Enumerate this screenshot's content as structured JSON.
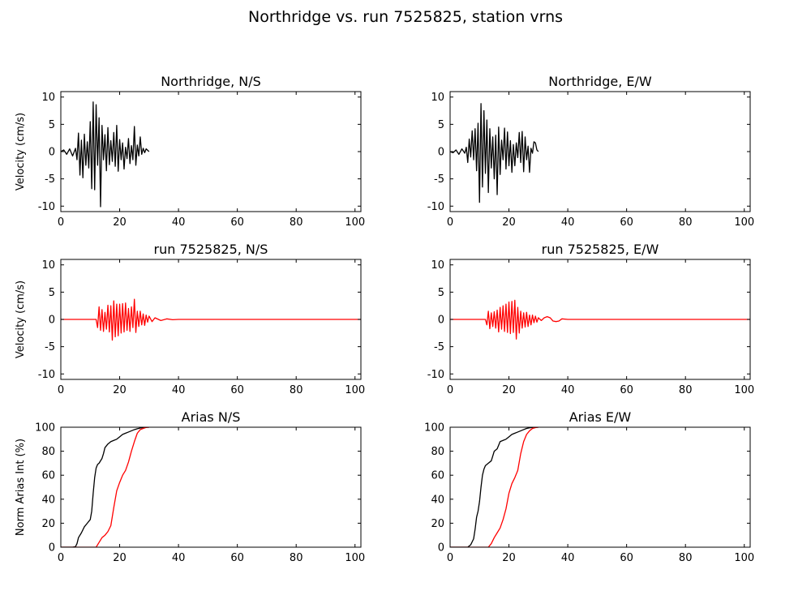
{
  "figure": {
    "suptitle": "Northridge vs. run 7525825, station vrns",
    "colors": {
      "recorded": "#000000",
      "simulated": "#ff0000",
      "axes": "#000000"
    }
  },
  "chart_data": [
    {
      "type": "line",
      "title": "Northridge, N/S",
      "xlabel": "",
      "ylabel": "Velocity (cm/s)",
      "xlim": [
        0,
        102
      ],
      "ylim": [
        -11,
        11
      ],
      "xticks": [
        0,
        20,
        40,
        60,
        80,
        100
      ],
      "yticks": [
        -10,
        -5,
        0,
        5,
        10
      ],
      "series": [
        {
          "color": "#000000",
          "x": [
            0,
            1,
            2,
            3,
            4,
            5,
            5.5,
            6,
            6.5,
            7,
            7.5,
            8,
            8.5,
            9,
            9.5,
            10,
            10.5,
            11,
            11.5,
            12,
            12.5,
            13,
            13.5,
            14,
            14.5,
            15,
            15.5,
            16,
            16.5,
            17,
            17.5,
            18,
            18.5,
            19,
            19.5,
            20,
            20.5,
            21,
            21.5,
            22,
            22.5,
            23,
            23.5,
            24,
            24.5,
            25,
            25.5,
            26,
            26.5,
            27,
            27.5,
            28,
            28.5,
            29,
            30
          ],
          "y": [
            0,
            0.3,
            -0.5,
            0.5,
            -0.8,
            0.6,
            -1.5,
            3.4,
            -4.3,
            2.1,
            -4.8,
            3.2,
            -2.5,
            1.8,
            -3.0,
            5.5,
            -6.8,
            9.1,
            -7.0,
            8.6,
            -2.5,
            6.2,
            -10.1,
            4.8,
            -1.5,
            3.1,
            -3.5,
            4.4,
            -2.4,
            2.0,
            -1.8,
            3.5,
            -2.7,
            4.8,
            -3.6,
            2.2,
            -1.5,
            1.6,
            -3.2,
            0.8,
            -1.3,
            2.4,
            -2.2,
            1.1,
            -1.5,
            4.6,
            -2.5,
            1.2,
            -0.8,
            2.7,
            -0.5,
            0.6,
            -0.2,
            0.5,
            0
          ]
        }
      ]
    },
    {
      "type": "line",
      "title": "Northridge, E/W",
      "xlabel": "",
      "ylabel": "",
      "xlim": [
        0,
        102
      ],
      "ylim": [
        -11,
        11
      ],
      "xticks": [
        0,
        20,
        40,
        60,
        80,
        100
      ],
      "yticks": [
        -10,
        -5,
        0,
        5,
        10
      ],
      "series": [
        {
          "color": "#000000",
          "x": [
            0,
            1,
            2,
            3,
            4,
            5,
            5.5,
            6,
            6.5,
            7,
            7.5,
            8,
            8.5,
            9,
            9.5,
            10,
            10.5,
            11,
            11.5,
            12,
            12.5,
            13,
            13.5,
            14,
            14.5,
            15,
            15.5,
            16,
            16.5,
            17,
            17.5,
            18,
            18.5,
            19,
            19.5,
            20,
            20.5,
            21,
            21.5,
            22,
            22.5,
            23,
            23.5,
            24,
            24.5,
            25,
            25.5,
            26,
            26.5,
            27,
            27.5,
            28,
            28.5,
            29,
            29.5,
            30
          ],
          "y": [
            0,
            -0.2,
            0.3,
            -0.5,
            0.5,
            -0.3,
            0.8,
            -2.0,
            2.3,
            -1.0,
            3.8,
            -1.5,
            4.2,
            -3.5,
            5.2,
            -9.3,
            8.8,
            -6.5,
            7.5,
            -4.0,
            5.8,
            -7.5,
            4.2,
            -3.0,
            2.7,
            -5.0,
            3.0,
            -7.9,
            4.5,
            -4.2,
            2.1,
            -1.5,
            4.3,
            -3.2,
            3.6,
            -2.6,
            2.0,
            -3.8,
            1.3,
            -2.6,
            1.6,
            -1.1,
            3.5,
            -2.0,
            3.7,
            -3.7,
            2.7,
            -1.5,
            1.0,
            -3.8,
            0.6,
            -0.3,
            1.8,
            1.6,
            0.3,
            0
          ]
        }
      ]
    },
    {
      "type": "line",
      "title": "run 7525825, N/S",
      "xlabel": "",
      "ylabel": "Velocity (cm/s)",
      "xlim": [
        0,
        102
      ],
      "ylim": [
        -11,
        11
      ],
      "xticks": [
        0,
        20,
        40,
        60,
        80,
        100
      ],
      "yticks": [
        -10,
        -5,
        0,
        5,
        10
      ],
      "series": [
        {
          "color": "#ff0000",
          "x": [
            0,
            10,
            12,
            12.5,
            13,
            13.5,
            14,
            14.5,
            15,
            15.5,
            16,
            16.5,
            17,
            17.5,
            18,
            18.5,
            19,
            19.5,
            20,
            20.5,
            21,
            21.5,
            22,
            22.5,
            23,
            23.5,
            24,
            24.5,
            25,
            25.5,
            26,
            26.5,
            27,
            27.5,
            28,
            28.5,
            29,
            29.5,
            30,
            31,
            32,
            34,
            36,
            38,
            40,
            45,
            102
          ],
          "y": [
            0,
            0,
            0,
            -1.5,
            2.3,
            -2.0,
            1.8,
            -2.2,
            1.3,
            -1.8,
            2.6,
            -2.3,
            2.5,
            -3.8,
            3.4,
            -3.2,
            2.8,
            -3.0,
            2.8,
            -2.5,
            2.9,
            -2.3,
            3.0,
            -2.0,
            2.0,
            -2.2,
            2.3,
            -1.5,
            3.7,
            -2.4,
            1.5,
            -1.3,
            1.5,
            -1.0,
            1.0,
            -1.1,
            0.8,
            -0.5,
            0.6,
            -0.4,
            0.3,
            -0.2,
            0.1,
            -0.05,
            0,
            0,
            0
          ]
        }
      ]
    },
    {
      "type": "line",
      "title": "run 7525825, E/W",
      "xlabel": "",
      "ylabel": "",
      "xlim": [
        0,
        102
      ],
      "ylim": [
        -11,
        11
      ],
      "xticks": [
        0,
        20,
        40,
        60,
        80,
        100
      ],
      "yticks": [
        -10,
        -5,
        0,
        5,
        10
      ],
      "series": [
        {
          "color": "#ff0000",
          "x": [
            0,
            10,
            12,
            12.5,
            13,
            13.5,
            14,
            14.5,
            15,
            15.5,
            16,
            16.5,
            17,
            17.5,
            18,
            18.5,
            19,
            19.5,
            20,
            20.5,
            21,
            21.5,
            22,
            22.5,
            23,
            23.5,
            24,
            24.5,
            25,
            25.5,
            26,
            26.5,
            27,
            27.5,
            28,
            28.5,
            29,
            29.5,
            30,
            31,
            32,
            33,
            34,
            35,
            36,
            37,
            38,
            40,
            45,
            102
          ],
          "y": [
            0,
            0,
            0,
            -1.0,
            1.5,
            -1.7,
            1.2,
            -1.3,
            1.4,
            -1.6,
            1.7,
            -2.3,
            2.2,
            -1.8,
            2.5,
            -2.2,
            2.8,
            -2.4,
            3.2,
            -2.6,
            3.3,
            -2.4,
            3.5,
            -3.6,
            2.2,
            -2.5,
            1.5,
            -1.6,
            1.2,
            -1.4,
            1.3,
            -1.3,
            0.8,
            -1.0,
            0.8,
            -0.6,
            0.6,
            -0.5,
            0.3,
            -0.2,
            0.3,
            0.5,
            0.3,
            -0.3,
            -0.4,
            -0.3,
            0.1,
            0,
            0,
            0
          ]
        }
      ]
    },
    {
      "type": "line",
      "title": "Arias N/S",
      "xlabel": "",
      "ylabel": "Norm Arias Int (%)",
      "xlim": [
        0,
        102
      ],
      "ylim": [
        0,
        100
      ],
      "xticks": [
        0,
        20,
        40,
        60,
        80,
        100
      ],
      "yticks": [
        0,
        20,
        40,
        60,
        80,
        100
      ],
      "series": [
        {
          "color": "#000000",
          "x": [
            0,
            4,
            5,
            5.5,
            6,
            7,
            8,
            9,
            10,
            10.5,
            11,
            11.5,
            12,
            12.5,
            13,
            14,
            14.5,
            15,
            16,
            17,
            18,
            19,
            20,
            21,
            22,
            23,
            24,
            25,
            26,
            27,
            28,
            29,
            30
          ],
          "y": [
            0,
            0,
            0.5,
            3,
            8,
            12,
            17,
            20,
            23,
            30,
            45,
            58,
            66,
            69,
            70,
            74,
            78,
            83,
            86,
            88,
            89,
            90,
            92,
            94,
            95,
            96,
            97,
            98,
            98.7,
            99.3,
            99.7,
            100,
            100
          ]
        },
        {
          "color": "#ff0000",
          "x": [
            0,
            12,
            13,
            14,
            15,
            16,
            17,
            18,
            19,
            20,
            21,
            22,
            23,
            24,
            25,
            26,
            27,
            28,
            29,
            30
          ],
          "y": [
            0,
            0,
            4,
            8,
            10,
            13,
            18,
            33,
            47,
            54,
            60,
            64,
            71,
            80,
            88,
            95,
            98,
            99,
            99.8,
            100
          ]
        }
      ]
    },
    {
      "type": "line",
      "title": "Arias E/W",
      "xlabel": "",
      "ylabel": "",
      "xlim": [
        0,
        102
      ],
      "ylim": [
        0,
        100
      ],
      "xticks": [
        0,
        20,
        40,
        60,
        80,
        100
      ],
      "yticks": [
        0,
        20,
        40,
        60,
        80,
        100
      ],
      "series": [
        {
          "color": "#000000",
          "x": [
            0,
            6,
            7,
            8,
            8.5,
            9,
            9.5,
            10,
            10.5,
            11,
            11.5,
            12,
            13,
            14,
            14.5,
            15,
            16,
            17,
            18,
            19,
            20,
            21,
            22,
            23,
            24,
            25,
            26,
            27,
            28,
            29,
            30
          ],
          "y": [
            0,
            0,
            2,
            7,
            15,
            25,
            30,
            38,
            50,
            60,
            65,
            68,
            70,
            72,
            76,
            80,
            82,
            88,
            89,
            90,
            92,
            94,
            95,
            96,
            97,
            98,
            99,
            99.5,
            99.8,
            100,
            100
          ]
        },
        {
          "color": "#ff0000",
          "x": [
            0,
            13,
            14,
            15,
            16,
            17,
            18,
            19,
            20,
            21,
            22,
            23,
            24,
            25,
            26,
            27,
            28,
            29,
            30
          ],
          "y": [
            0,
            0,
            3,
            8,
            12,
            16,
            23,
            32,
            45,
            53,
            58,
            64,
            78,
            88,
            94,
            97,
            99,
            99.7,
            100
          ]
        }
      ]
    }
  ]
}
